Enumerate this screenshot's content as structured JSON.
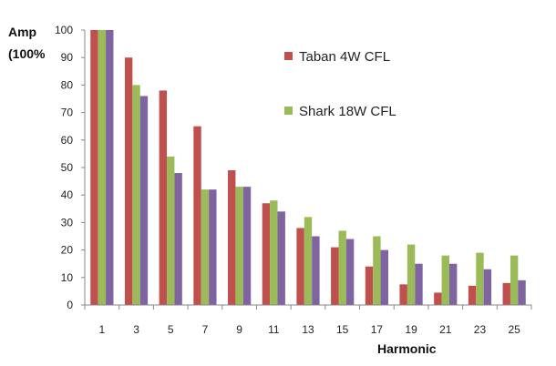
{
  "chart_data": {
    "type": "bar",
    "title": "",
    "xlabel": "Harmonic",
    "ylabel_lines": [
      "Amp",
      "(100%"
    ],
    "ylim": [
      0,
      100
    ],
    "yticks": [
      0,
      10,
      20,
      30,
      40,
      50,
      60,
      70,
      80,
      90,
      100
    ],
    "categories": [
      "1",
      "3",
      "5",
      "7",
      "9",
      "11",
      "13",
      "15",
      "17",
      "19",
      "21",
      "23",
      "25"
    ],
    "legend_placement": "top-right",
    "series": [
      {
        "name": "Taban 4W CFL",
        "color": "#c0504d",
        "values": [
          100,
          90,
          78,
          65,
          49,
          37,
          28,
          21,
          14,
          7.5,
          4.5,
          7,
          8
        ]
      },
      {
        "name": "Shark 18W CFL",
        "color": "#9bbb59",
        "values": [
          100,
          80,
          54,
          42,
          43,
          38,
          32,
          27,
          25,
          22,
          18,
          19,
          18
        ]
      },
      {
        "name": "",
        "color": "#8064a2",
        "values": [
          100,
          76,
          48,
          42,
          43,
          34,
          25,
          24,
          20,
          15,
          15,
          13,
          9
        ]
      }
    ]
  }
}
